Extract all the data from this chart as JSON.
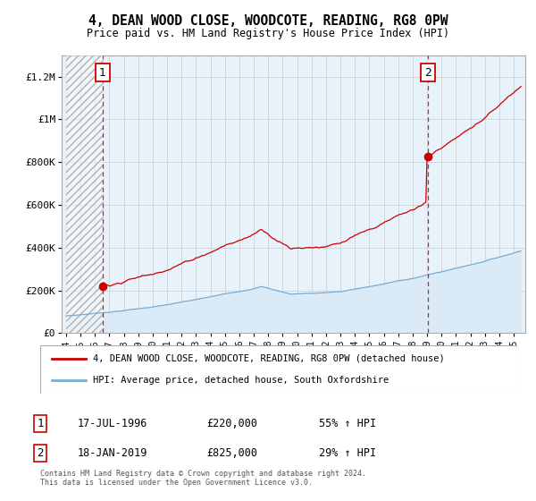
{
  "title": "4, DEAN WOOD CLOSE, WOODCOTE, READING, RG8 0PW",
  "subtitle": "Price paid vs. HM Land Registry's House Price Index (HPI)",
  "ylim": [
    0,
    1300000
  ],
  "xlim_start": 1993.7,
  "xlim_end": 2025.8,
  "yticks": [
    0,
    200000,
    400000,
    600000,
    800000,
    1000000,
    1200000
  ],
  "ytick_labels": [
    "£0",
    "£200K",
    "£400K",
    "£600K",
    "£800K",
    "£1M",
    "£1.2M"
  ],
  "xticks": [
    1994,
    1995,
    1996,
    1997,
    1998,
    1999,
    2000,
    2001,
    2002,
    2003,
    2004,
    2005,
    2006,
    2007,
    2008,
    2009,
    2010,
    2011,
    2012,
    2013,
    2014,
    2015,
    2016,
    2017,
    2018,
    2019,
    2020,
    2021,
    2022,
    2023,
    2024,
    2025
  ],
  "sale1_x": 1996.54,
  "sale1_y": 220000,
  "sale1_label": "1",
  "sale1_date": "17-JUL-1996",
  "sale1_price": "£220,000",
  "sale1_hpi": "55% ↑ HPI",
  "sale2_x": 2019.05,
  "sale2_y": 825000,
  "sale2_label": "2",
  "sale2_date": "18-JAN-2019",
  "sale2_price": "£825,000",
  "sale2_hpi": "29% ↑ HPI",
  "red_line_color": "#cc0000",
  "blue_line_color": "#7aabcf",
  "blue_fill_color": "#daeaf6",
  "grid_color": "#cccccc",
  "background_color": "#e8f2fb",
  "legend_line1": "4, DEAN WOOD CLOSE, WOODCOTE, READING, RG8 0PW (detached house)",
  "legend_line2": "HPI: Average price, detached house, South Oxfordshire",
  "footer": "Contains HM Land Registry data © Crown copyright and database right 2024.\nThis data is licensed under the Open Government Licence v3.0."
}
